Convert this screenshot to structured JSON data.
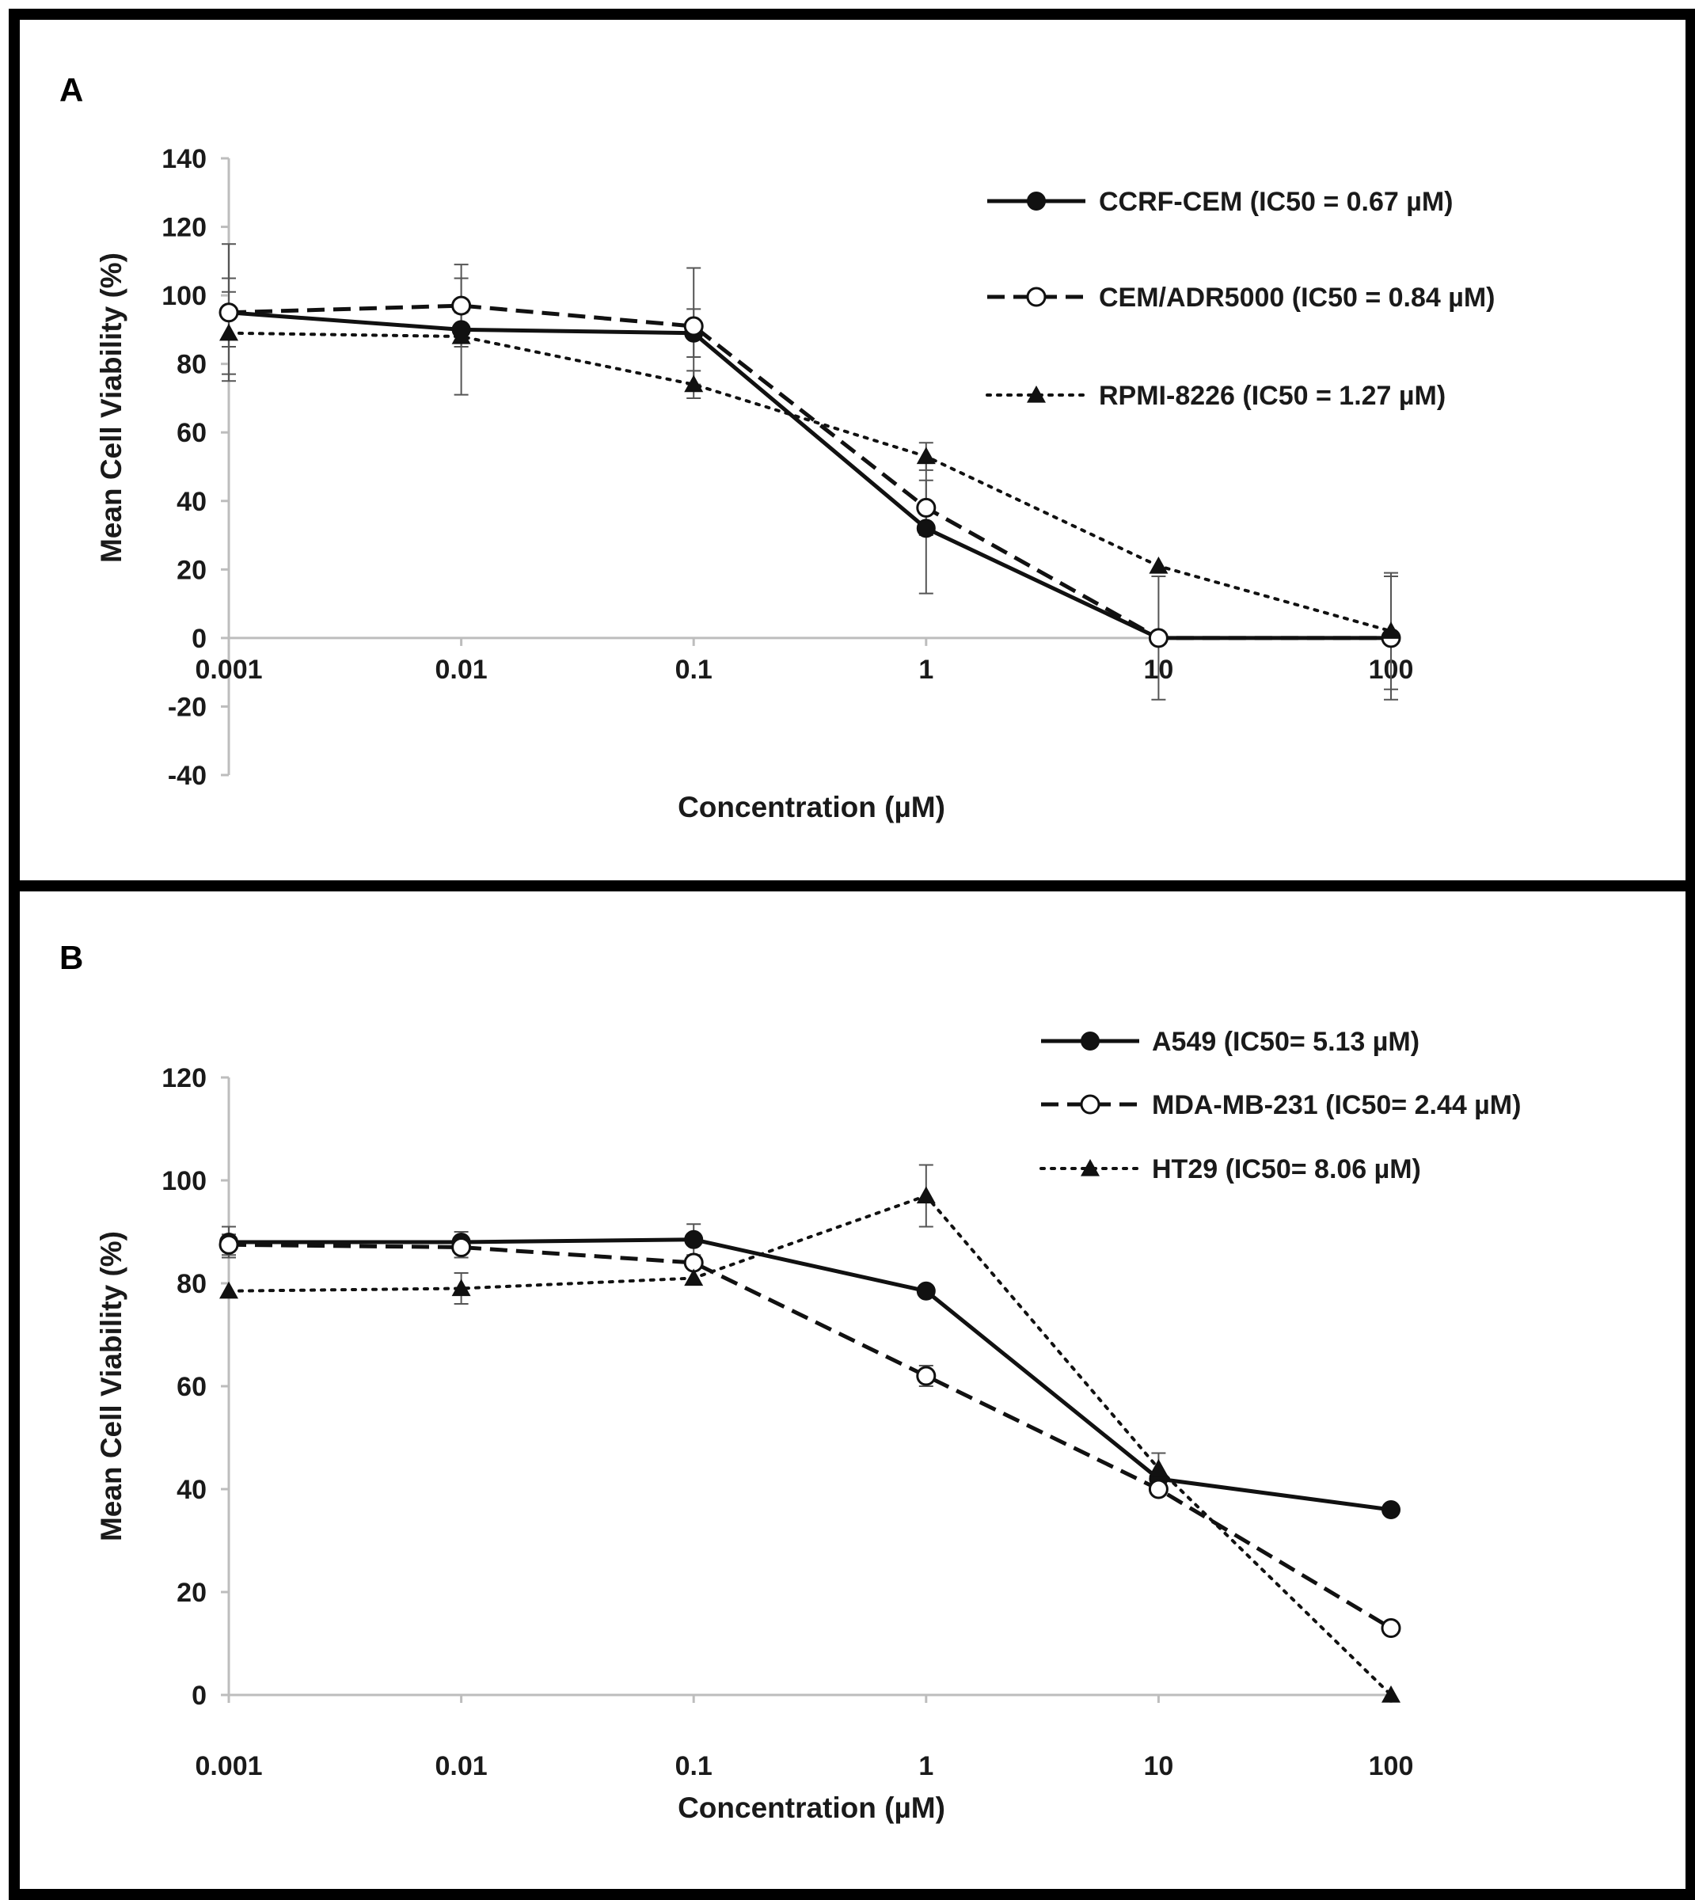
{
  "chart_data": [
    {
      "panel_label": "A",
      "type": "line",
      "xscale": "log",
      "categories": [
        "0.001",
        "0.01",
        "0.1",
        "1",
        "10",
        "100"
      ],
      "x": [
        0.001,
        0.01,
        0.1,
        1,
        10,
        100
      ],
      "xlabel": "Concentration (µM)",
      "ylabel": "Mean Cell Viability (%)",
      "ylim": [
        -40,
        140
      ],
      "yticks": [
        "140",
        "120",
        "100",
        "80",
        "60",
        "40",
        "20",
        "0",
        "-20",
        "-40"
      ],
      "ytick_values": [
        140,
        120,
        100,
        80,
        60,
        40,
        20,
        0,
        -20,
        -40
      ],
      "legend_position": "top-right",
      "series": [
        {
          "name": "CCRF-CEM (IC50 = 0.67 µM)",
          "style": "solid",
          "marker": "filled-circle",
          "values": [
            95,
            90,
            89,
            32,
            0,
            0
          ],
          "errors": [
            20,
            5,
            7,
            19,
            18,
            18
          ]
        },
        {
          "name": "CEM/ADR5000 (IC50 = 0.84 µM)",
          "style": "dashed",
          "marker": "open-circle",
          "values": [
            95,
            97,
            91,
            38,
            0,
            0
          ],
          "errors": [
            10,
            12,
            17,
            8,
            0,
            0
          ]
        },
        {
          "name": "RPMI-8226 (IC50 = 1.27 µM)",
          "style": "dotted",
          "marker": "filled-triangle",
          "values": [
            89,
            88,
            74,
            53,
            21,
            2
          ],
          "errors": [
            12,
            17,
            4,
            4,
            0,
            17
          ]
        }
      ]
    },
    {
      "panel_label": "B",
      "type": "line",
      "xscale": "log",
      "categories": [
        "0.001",
        "0.01",
        "0.1",
        "1",
        "10",
        "100"
      ],
      "x": [
        0.001,
        0.01,
        0.1,
        1,
        10,
        100
      ],
      "xlabel": "Concentration (µM)",
      "ylabel": "Mean Cell Viability (%)",
      "ylim": [
        0,
        120
      ],
      "yticks": [
        "120",
        "100",
        "80",
        "60",
        "40",
        "20",
        "0"
      ],
      "ytick_values": [
        120,
        100,
        80,
        60,
        40,
        20,
        0
      ],
      "legend_position": "top-right",
      "series": [
        {
          "name": "A549 (IC50= 5.13 µM)",
          "style": "solid",
          "marker": "filled-circle",
          "values": [
            88,
            88,
            88.5,
            78.5,
            42,
            36
          ],
          "errors": [
            3,
            2,
            3,
            1,
            0,
            1
          ]
        },
        {
          "name": "MDA-MB-231 (IC50= 2.44 µM)",
          "style": "dashed",
          "marker": "open-circle",
          "values": [
            87.5,
            87,
            84,
            62,
            40,
            13
          ],
          "errors": [
            2,
            2,
            0,
            2,
            1,
            0
          ]
        },
        {
          "name": "HT29 (IC50= 8.06 µM)",
          "style": "dotted",
          "marker": "filled-triangle",
          "values": [
            78.5,
            79,
            81,
            97,
            44,
            0
          ],
          "errors": [
            0,
            3,
            0,
            6,
            3,
            0
          ]
        }
      ]
    }
  ]
}
